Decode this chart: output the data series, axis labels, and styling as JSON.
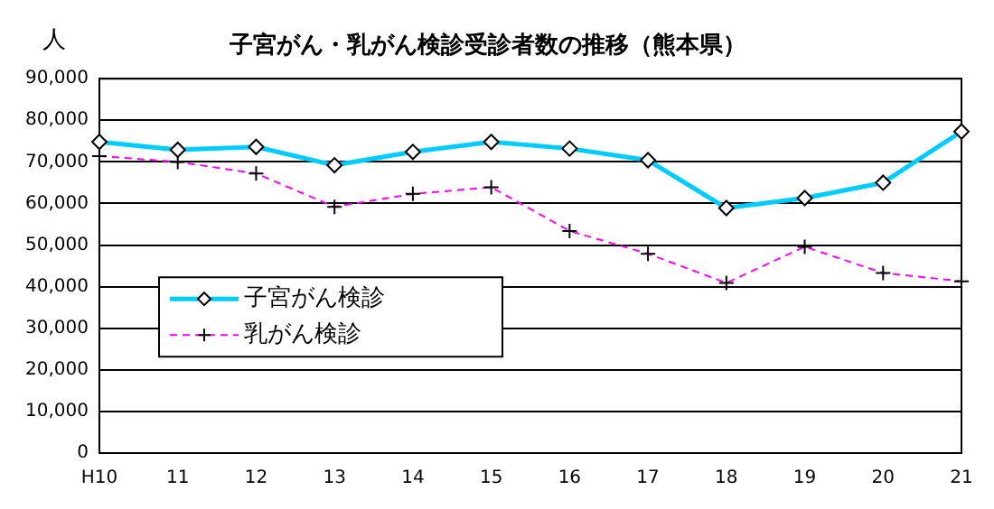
{
  "chart_data": {
    "type": "line",
    "title": "子宮がん・乳がん検診受診者数の推移（熊本県）",
    "ylabel": "人",
    "categories": [
      "H10",
      "11",
      "12",
      "13",
      "14",
      "15",
      "16",
      "17",
      "18",
      "19",
      "20",
      "21"
    ],
    "series": [
      {
        "name": "子宮がん検診",
        "color": "#00ccff",
        "marker": "diamond",
        "line_style": "solid",
        "values": [
          74800,
          72900,
          73600,
          69200,
          72400,
          74800,
          73200,
          70400,
          58900,
          61300,
          65000,
          77300
        ]
      },
      {
        "name": "乳がん検診",
        "color": "#ff00ff",
        "marker": "cross",
        "line_style": "dashed",
        "values": [
          71400,
          70000,
          67200,
          59200,
          62300,
          63900,
          53400,
          47900,
          40900,
          49600,
          43300,
          41300
        ]
      }
    ],
    "ylim": [
      0,
      90000
    ],
    "yticks": [
      0,
      {
        "value": 10000,
        "label": "10,000"
      },
      {
        "value": 20000,
        "label": "20,000"
      },
      {
        "value": 30000,
        "label": "30,000"
      },
      {
        "value": 40000,
        "label": "40,000"
      },
      {
        "value": 50000,
        "label": "50,000"
      },
      {
        "value": 60000,
        "label": "60,000"
      },
      {
        "value": 70000,
        "label": "70,000"
      },
      {
        "value": 80000,
        "label": "80,000"
      },
      {
        "value": 90000,
        "label": "90,000"
      }
    ],
    "grid": "y",
    "legend": "left"
  }
}
